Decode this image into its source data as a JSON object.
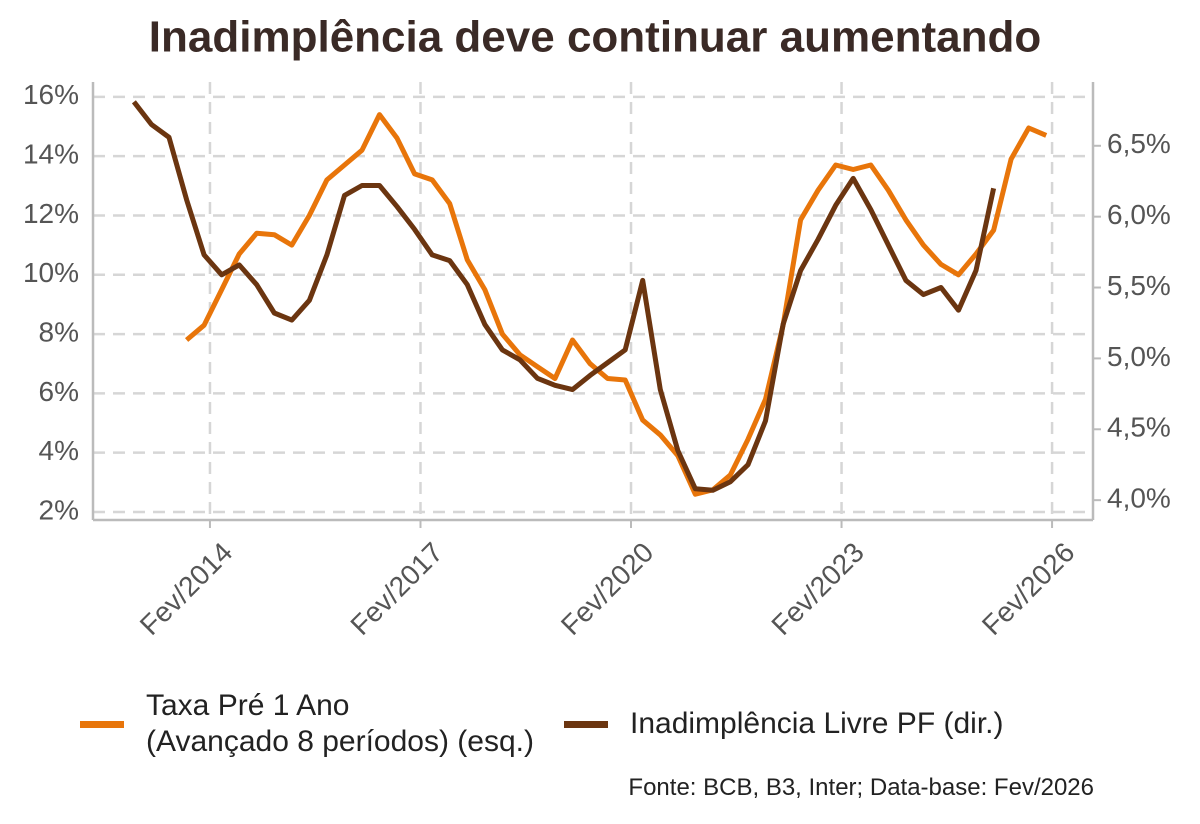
{
  "chart_data": {
    "type": "line",
    "title": "Inadimplência deve continuar aumentando",
    "source": "Fonte: BCB, B3, Inter; Data-base: Fev/2026",
    "x": [
      "2013-01",
      "2013-04",
      "2013-07",
      "2013-10",
      "2014-01",
      "2014-04",
      "2014-07",
      "2014-10",
      "2015-01",
      "2015-04",
      "2015-07",
      "2015-10",
      "2016-01",
      "2016-04",
      "2016-07",
      "2016-10",
      "2017-01",
      "2017-04",
      "2017-07",
      "2017-10",
      "2018-01",
      "2018-04",
      "2018-07",
      "2018-10",
      "2019-01",
      "2019-04",
      "2019-07",
      "2019-10",
      "2020-01",
      "2020-04",
      "2020-07",
      "2020-10",
      "2021-01",
      "2021-04",
      "2021-07",
      "2021-10",
      "2022-01",
      "2022-04",
      "2022-07",
      "2022-10",
      "2023-01",
      "2023-04",
      "2023-07",
      "2023-10",
      "2024-01",
      "2024-04",
      "2024-07",
      "2024-10",
      "2025-01",
      "2025-04",
      "2025-07",
      "2025-10",
      "2026-01"
    ],
    "series": [
      {
        "name": "Taxa Pré 1 Ano\n(Avançado 8 períodos) (esq.)",
        "color": "#e8750a",
        "axis": "y",
        "values": [
          null,
          null,
          null,
          7.8,
          8.3,
          9.5,
          10.7,
          11.4,
          11.35,
          11.0,
          12.0,
          13.2,
          13.7,
          14.2,
          15.4,
          14.6,
          13.4,
          13.2,
          12.4,
          10.5,
          9.5,
          8.0,
          7.3,
          6.9,
          6.5,
          7.8,
          7.0,
          6.5,
          6.45,
          5.1,
          4.6,
          3.9,
          2.6,
          2.75,
          3.25,
          4.45,
          5.8,
          8.3,
          11.85,
          12.85,
          13.7,
          13.55,
          13.7,
          12.85,
          11.85,
          11.0,
          10.35,
          10.0,
          10.7,
          11.5,
          13.9,
          14.95,
          14.7
        ]
      },
      {
        "name": "Inadimplência Livre PF (dir.)",
        "color": "#6b3510",
        "axis": "y2",
        "values": [
          6.81,
          6.65,
          6.56,
          6.12,
          5.73,
          5.59,
          5.66,
          5.52,
          5.32,
          5.27,
          5.41,
          5.73,
          6.15,
          6.22,
          6.22,
          6.07,
          5.91,
          5.73,
          5.69,
          5.52,
          5.24,
          5.06,
          4.99,
          4.86,
          4.81,
          4.78,
          4.88,
          4.97,
          5.06,
          5.55,
          4.78,
          4.35,
          4.08,
          4.07,
          4.13,
          4.25,
          4.56,
          5.24,
          5.62,
          5.84,
          6.08,
          6.27,
          6.05,
          5.8,
          5.55,
          5.45,
          5.5,
          5.34,
          5.62,
          6.2,
          null,
          null,
          null
        ]
      }
    ],
    "xlim": [
      "2012-06",
      "2026-09"
    ],
    "xticks": [
      {
        "value": "2014-02",
        "label": "Fev/2014"
      },
      {
        "value": "2017-02",
        "label": "Fev/2017"
      },
      {
        "value": "2020-02",
        "label": "Fev/2020"
      },
      {
        "value": "2023-02",
        "label": "Fev/2023"
      },
      {
        "value": "2026-02",
        "label": "Fev/2026"
      }
    ],
    "ylim": [
      1.73,
      16.5
    ],
    "yticks": [
      {
        "value": 2,
        "label": "2%"
      },
      {
        "value": 4,
        "label": "4%"
      },
      {
        "value": 6,
        "label": "6%"
      },
      {
        "value": 8,
        "label": "8%"
      },
      {
        "value": 10,
        "label": "10%"
      },
      {
        "value": 12,
        "label": "12%"
      },
      {
        "value": 14,
        "label": "14%"
      },
      {
        "value": 16,
        "label": "16%"
      }
    ],
    "y2lim": [
      3.86,
      6.95
    ],
    "y2ticks": [
      {
        "value": 4,
        "label": "4,0%"
      },
      {
        "value": 4.5,
        "label": "4,5%"
      },
      {
        "value": 5,
        "label": "5,0%"
      },
      {
        "value": 5.5,
        "label": "5,5%"
      },
      {
        "value": 6,
        "label": "6,0%"
      },
      {
        "value": 6.5,
        "label": "6,5%"
      }
    ],
    "grid": true
  }
}
